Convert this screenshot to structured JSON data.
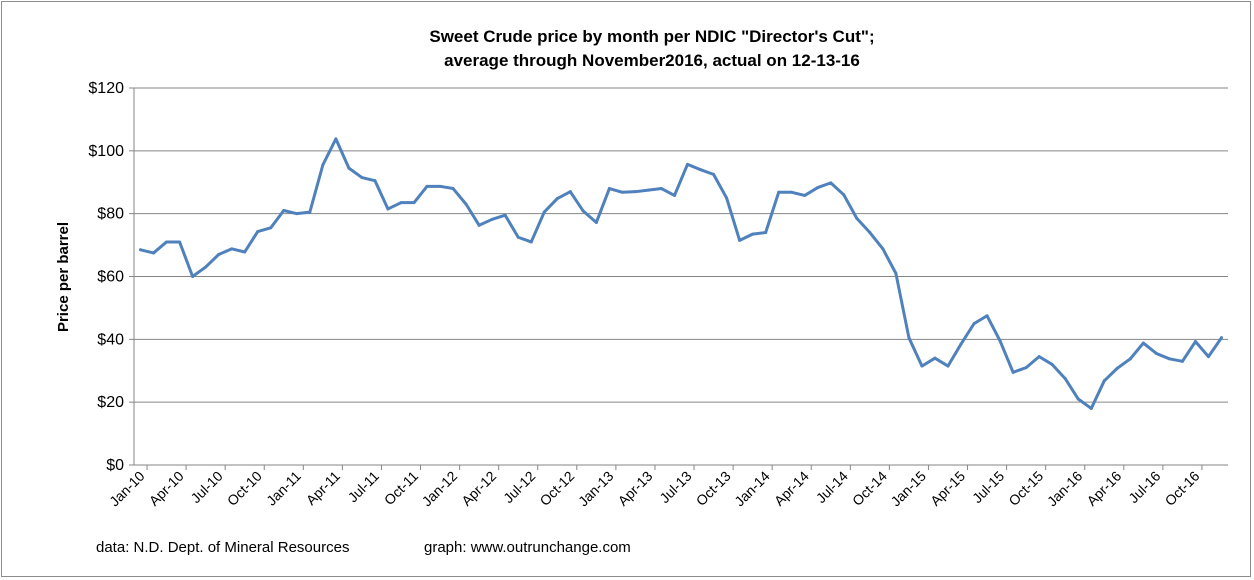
{
  "chart_data": {
    "type": "line",
    "title_line1": "Sweet Crude price by month per NDIC \"Director's Cut\";",
    "title_line2": "average through November2016, actual  on   12-13-16",
    "ylabel": "Price per barrel",
    "xlabel": "",
    "ylim": [
      0,
      120
    ],
    "y_ticks": [
      0,
      20,
      40,
      60,
      80,
      100,
      120
    ],
    "y_tick_labels": [
      "$0",
      "$20",
      "$40",
      "$60",
      "$80",
      "$100",
      "$120"
    ],
    "grid": "horizontal",
    "legend": "none",
    "x_tick_labels": [
      "Jan-10",
      "Apr-10",
      "Jul-10",
      "Oct-10",
      "Jan-11",
      "Apr-11",
      "Jul-11",
      "Oct-11",
      "Jan-12",
      "Apr-12",
      "Jul-12",
      "Oct-12",
      "Jan-13",
      "Apr-13",
      "Jul-13",
      "Oct-13",
      "Jan-14",
      "Apr-14",
      "Jul-14",
      "Oct-14",
      "Jan-15",
      "Apr-15",
      "Jul-15",
      "Oct-15",
      "Jan-16",
      "Apr-16",
      "Jul-16",
      "Oct-16"
    ],
    "series": [
      {
        "name": "Sweet Crude",
        "color": "#4f81bd",
        "values": [
          68.5,
          67.5,
          71.0,
          71.0,
          60.0,
          63.0,
          67.0,
          68.8,
          67.8,
          74.3,
          75.5,
          81.0,
          80.0,
          80.5,
          95.5,
          103.8,
          94.5,
          91.5,
          90.5,
          81.5,
          83.5,
          83.5,
          88.7,
          88.7,
          88.0,
          83.0,
          76.3,
          78.2,
          79.5,
          72.5,
          71.0,
          80.5,
          84.8,
          87.0,
          80.8,
          77.2,
          88.0,
          86.8,
          87.0,
          87.5,
          88.0,
          85.8,
          95.7,
          94.0,
          92.5,
          85.0,
          71.5,
          73.5,
          74.0,
          86.8,
          86.8,
          85.8,
          88.3,
          89.8,
          86.0,
          78.5,
          74.0,
          68.8,
          61.0,
          40.5,
          31.5,
          34.0,
          31.5,
          38.5,
          45.0,
          47.5,
          39.5,
          29.5,
          31.0,
          34.5,
          32.0,
          27.5,
          21.0,
          18.0,
          26.8,
          30.8,
          33.8,
          38.8,
          35.5,
          33.8,
          33.0,
          39.3,
          34.5,
          40.5
        ]
      }
    ]
  },
  "footer": {
    "source": "data: N.D. Dept. of Mineral Resources",
    "graph_credit": "graph:  www.outrunchange.com"
  }
}
